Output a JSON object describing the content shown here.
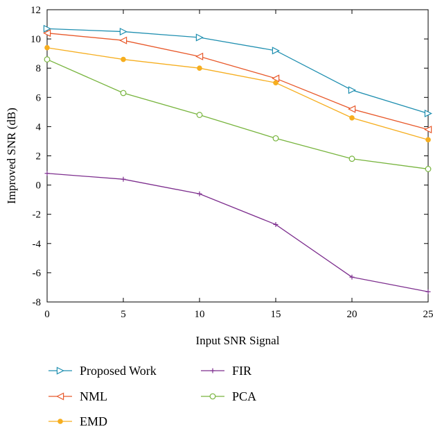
{
  "chart_data": {
    "type": "line",
    "title": "",
    "xlabel": "Input SNR Signal",
    "ylabel": "Improved SNR (dB)",
    "x": [
      0,
      5,
      10,
      15,
      20,
      25
    ],
    "xlim": [
      0,
      25
    ],
    "ylim": [
      -8,
      12
    ],
    "xticks": [
      0,
      5,
      10,
      15,
      20,
      25
    ],
    "yticks": [
      -8,
      -6,
      -4,
      -2,
      0,
      2,
      4,
      6,
      8,
      10,
      12
    ],
    "xtick_labels": [
      "0",
      "5",
      "10",
      "15",
      "20",
      "25"
    ],
    "ytick_labels": [
      "-8",
      "-6",
      "-4",
      "-2",
      "0",
      "2",
      "4",
      "6",
      "8",
      "10",
      "12"
    ],
    "grid": false,
    "legend_position": "bottom",
    "series": [
      {
        "name": "Proposed Work",
        "color": "#1f8fb0",
        "marker": "triangle-right",
        "values": [
          10.7,
          10.5,
          10.1,
          9.2,
          6.5,
          4.9
        ]
      },
      {
        "name": "NML",
        "color": "#e8592b",
        "marker": "triangle-left",
        "values": [
          10.4,
          9.9,
          8.8,
          7.3,
          5.2,
          3.8
        ]
      },
      {
        "name": "EMD",
        "color": "#f6ae1f",
        "marker": "filled-circle",
        "values": [
          9.4,
          8.6,
          8.0,
          7.0,
          4.6,
          3.1
        ]
      },
      {
        "name": "FIR",
        "color": "#7d2e8e",
        "marker": "plus",
        "values": [
          0.8,
          0.4,
          -0.6,
          -2.7,
          -6.3,
          -7.3
        ]
      },
      {
        "name": "PCA",
        "color": "#77b43d",
        "marker": "open-circle",
        "values": [
          8.6,
          6.3,
          4.8,
          3.2,
          1.8,
          1.1
        ]
      }
    ]
  }
}
